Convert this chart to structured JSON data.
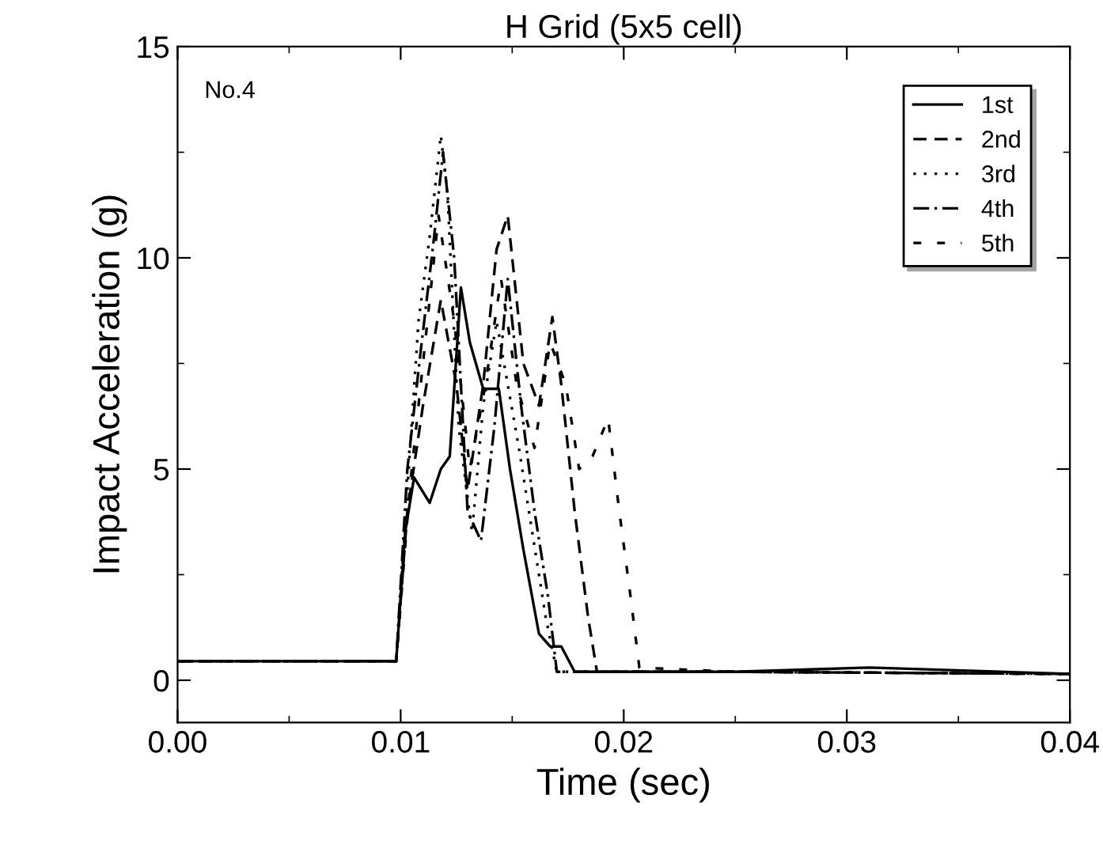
{
  "chart_data": {
    "type": "line",
    "title": "H Grid (5x5 cell)",
    "xlabel": "Time (sec)",
    "ylabel": "Impact Acceleration (g)",
    "annotations": [
      "No.4"
    ],
    "xlim": [
      0,
      0.04
    ],
    "xticks": [
      {
        "value": 0,
        "label": "0.00"
      },
      0.01,
      0.02,
      0.03,
      0.04
    ],
    "ylim": [
      -1,
      15
    ],
    "yticks": [
      0,
      5,
      10,
      15
    ],
    "grid": false,
    "legend": "top right",
    "series": [
      {
        "name": "1st",
        "color": "#000000",
        "line_style": "solid",
        "x": [
          0,
          0.005,
          0.0098,
          0.0102,
          0.0106,
          0.0113,
          0.0118,
          0.0122,
          0.0127,
          0.0131,
          0.0137,
          0.0144,
          0.0149,
          0.0155,
          0.0162,
          0.0167,
          0.0172,
          0.0178,
          0.025,
          0.031,
          0.04
        ],
        "values": [
          0.45,
          0.45,
          0.45,
          3.5,
          4.8,
          4.2,
          5.0,
          5.3,
          9.3,
          8.0,
          6.9,
          6.9,
          5.0,
          3.1,
          1.1,
          0.8,
          0.8,
          0.2,
          0.2,
          0.3,
          0.15
        ]
      },
      {
        "name": "2nd",
        "color": "#000000",
        "line_style": "dashed",
        "x": [
          0,
          0.0098,
          0.0103,
          0.011,
          0.0118,
          0.0125,
          0.013,
          0.0137,
          0.0143,
          0.0148,
          0.0155,
          0.0162,
          0.0168,
          0.0172,
          0.0178,
          0.0184,
          0.0188,
          0.025,
          0.04
        ],
        "values": [
          0.45,
          0.45,
          4.0,
          6.5,
          9.0,
          7.0,
          4.5,
          7.0,
          10.2,
          11.0,
          7.5,
          6.5,
          8.6,
          7.0,
          4.0,
          1.5,
          0.2,
          0.2,
          0.15
        ]
      },
      {
        "name": "3rd",
        "color": "#000000",
        "line_style": "dotted",
        "x": [
          0,
          0.0098,
          0.0103,
          0.0108,
          0.0113,
          0.0118,
          0.0121,
          0.0126,
          0.0132,
          0.0137,
          0.0143,
          0.0148,
          0.0153,
          0.0159,
          0.0165,
          0.017,
          0.025,
          0.04
        ],
        "values": [
          0.45,
          0.45,
          4.5,
          8.5,
          10.5,
          12.9,
          11.5,
          6.0,
          3.5,
          6.5,
          8.5,
          7.0,
          5.5,
          3.5,
          1.5,
          0.2,
          0.2,
          0.15
        ]
      },
      {
        "name": "4th",
        "color": "#000000",
        "line_style": "dashdot",
        "x": [
          0,
          0.0098,
          0.0103,
          0.0109,
          0.0115,
          0.0119,
          0.0124,
          0.013,
          0.0136,
          0.0142,
          0.0148,
          0.0154,
          0.016,
          0.0166,
          0.017,
          0.025,
          0.04
        ],
        "values": [
          0.45,
          0.45,
          5.0,
          7.8,
          10.5,
          12.5,
          10.0,
          4.0,
          3.3,
          6.0,
          9.5,
          6.5,
          4.0,
          2.0,
          0.2,
          0.2,
          0.15
        ]
      },
      {
        "name": "5th",
        "color": "#000000",
        "line_style": "loosedash",
        "x": [
          0,
          0.0098,
          0.0104,
          0.011,
          0.0117,
          0.0124,
          0.0131,
          0.0138,
          0.0145,
          0.0152,
          0.016,
          0.0167,
          0.0174,
          0.018,
          0.0186,
          0.0193,
          0.0198,
          0.0203,
          0.0207,
          0.025,
          0.04
        ],
        "values": [
          0.45,
          0.45,
          4.5,
          7.5,
          11.0,
          8.5,
          5.0,
          7.0,
          9.5,
          7.0,
          5.5,
          8.0,
          7.0,
          5.0,
          5.3,
          6.2,
          4.0,
          2.0,
          0.3,
          0.2,
          0.15
        ]
      }
    ]
  }
}
